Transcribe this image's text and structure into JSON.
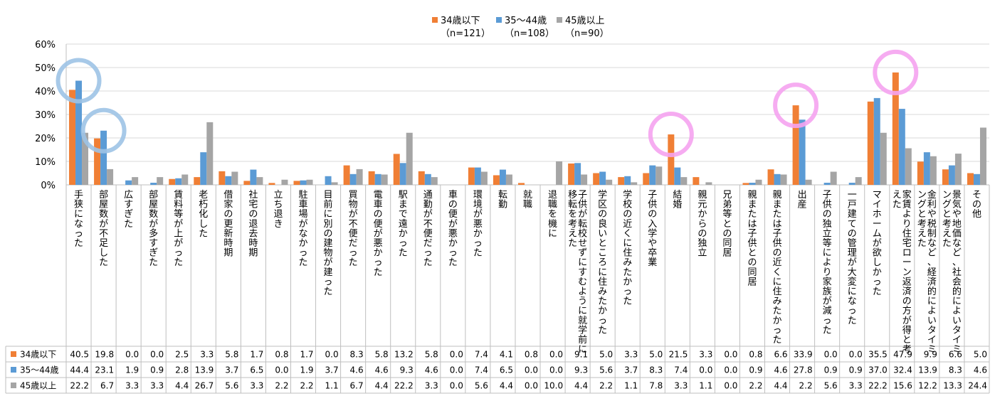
{
  "chart_data": {
    "type": "bar",
    "legend_position": "top",
    "grid": true,
    "ylim": [
      0,
      60
    ],
    "y_ticks": [
      "0%",
      "10%",
      "20%",
      "30%",
      "40%",
      "50%",
      "60%"
    ],
    "categories": [
      "手狭になった",
      "部屋数が不足した",
      "広すぎた",
      "部屋数が多すぎた",
      "賃料等が上がった",
      "老朽化した",
      "借家の更新時期",
      "社宅の退去時期",
      "立ち退き",
      "駐車場がなかった",
      "目前に別の建物が建った",
      "買物が不便だった",
      "電車の便が悪かった",
      "駅まで遠かった",
      "通勤が不便だった",
      "車の便が悪かった",
      "環境が悪かった",
      "転勤",
      "就職",
      "退職を機に",
      "子供が転校せずにすむように就学前に移転を考えた",
      "学区の良いところに住みたかった",
      "学校の近くに住みたかった",
      "子供の入学や卒業",
      "結婚",
      "親元からの独立",
      "兄弟等との同居",
      "親または子供との同居",
      "親または子供の近くに住みたかった",
      "出産",
      "子供の独立等により家族が減った",
      "一戸建ての管理が大変になった",
      "マイホームが欲しかった",
      "家賃より住宅ローン返済の方が得と考えた",
      "金利や税制など、経済的によいタイミングと考えた",
      "景気や地価など、社会的によいタイミングと考えた",
      "その他"
    ],
    "series": [
      {
        "name": "34歳以下",
        "legend_sub": "（n=121）",
        "table_label": "34歳以下",
        "color": "#F07F35",
        "values": [
          40.5,
          19.8,
          0.0,
          0.0,
          2.5,
          3.3,
          5.8,
          1.7,
          0.8,
          1.7,
          0.0,
          8.3,
          5.8,
          13.2,
          5.8,
          0.0,
          7.4,
          4.1,
          0.8,
          0.0,
          9.1,
          5.0,
          3.3,
          5.0,
          21.5,
          3.3,
          0.0,
          0.8,
          6.6,
          33.9,
          0.0,
          0.0,
          35.5,
          47.9,
          9.9,
          6.6,
          5.0
        ]
      },
      {
        "name": "35～44歳",
        "legend_sub": "（n=108）",
        "table_label": "35～44歳",
        "color": "#5B9BD5",
        "values": [
          44.4,
          23.1,
          1.9,
          0.9,
          2.8,
          13.9,
          3.7,
          6.5,
          0.0,
          1.9,
          3.7,
          4.6,
          4.6,
          9.3,
          4.6,
          0.0,
          7.4,
          6.5,
          0.0,
          0.0,
          9.3,
          5.6,
          3.7,
          8.3,
          7.4,
          0.0,
          0.0,
          0.9,
          4.6,
          27.8,
          0.9,
          0.9,
          37.0,
          32.4,
          13.9,
          8.3,
          4.6
        ]
      },
      {
        "name": "45歳以上",
        "legend_sub": "（n=90）",
        "table_label": "45歳以上",
        "color": "#A5A5A5",
        "values": [
          22.2,
          6.7,
          3.3,
          3.3,
          4.4,
          26.7,
          5.6,
          3.3,
          2.2,
          2.2,
          1.1,
          6.7,
          4.4,
          22.2,
          3.3,
          0.0,
          5.6,
          4.4,
          0.0,
          10.0,
          4.4,
          2.2,
          1.1,
          7.8,
          3.3,
          1.1,
          0.0,
          2.2,
          4.4,
          2.2,
          5.6,
          3.3,
          22.2,
          15.6,
          12.2,
          13.3,
          24.4
        ]
      }
    ],
    "highlights": [
      {
        "category_index": 0,
        "series": "35～44歳",
        "color": "#9DC3E6"
      },
      {
        "category_index": 1,
        "series": "35～44歳",
        "color": "#9DC3E6"
      },
      {
        "category_index": 24,
        "series": "34歳以下",
        "color": "#F5A3F0"
      },
      {
        "category_index": 29,
        "series": "34歳以下",
        "color": "#F5A3F0"
      },
      {
        "category_index": 33,
        "series": "34歳以下",
        "color": "#F5A3F0"
      }
    ],
    "colors": {
      "grid": "#D9D9D9",
      "axis": "#BFBFBF",
      "text": "#000000"
    }
  }
}
